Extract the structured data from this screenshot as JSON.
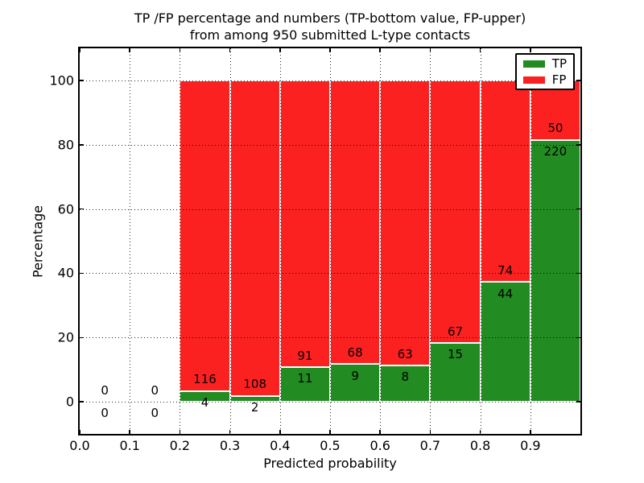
{
  "title_line1": "TP /FP percentage and numbers (TP-bottom value, FP-upper)",
  "title_line2": "from among 950 submitted L-type contacts",
  "chart_data": {
    "type": "bar",
    "stacked": true,
    "title": "TP /FP percentage and numbers (TP-bottom value, FP-upper)\nfrom among 950 submitted L-type contacts",
    "xlabel": "Predicted probability",
    "ylabel": "Percentage",
    "xlim": [
      0.0,
      1.0
    ],
    "ylim": [
      -10,
      110
    ],
    "grid": "dotted",
    "legend_position": "upper right",
    "total_submitted": 950,
    "bin_edges": [
      0.0,
      0.1,
      0.2,
      0.3,
      0.4,
      0.5,
      0.6,
      0.7,
      0.8,
      0.9,
      1.0
    ],
    "x_tick_values": [
      0.0,
      0.1,
      0.2,
      0.3,
      0.4,
      0.5,
      0.6,
      0.7,
      0.8,
      0.9
    ],
    "x_tick_labels": [
      "0.0",
      "0.1",
      "0.2",
      "0.3",
      "0.4",
      "0.5",
      "0.6",
      "0.7",
      "0.8",
      "0.9"
    ],
    "y_tick_values": [
      0,
      20,
      40,
      60,
      80,
      100
    ],
    "y_tick_labels": [
      "0",
      "20",
      "40",
      "60",
      "80",
      "100"
    ],
    "series": [
      {
        "name": "TP",
        "color": "#228b22",
        "counts": [
          0,
          0,
          4,
          2,
          11,
          9,
          8,
          15,
          44,
          220
        ]
      },
      {
        "name": "FP",
        "color": "#fb2121",
        "counts": [
          0,
          0,
          116,
          108,
          91,
          68,
          63,
          67,
          74,
          50
        ]
      }
    ],
    "tp_percent_heights": [
      0,
      0,
      3.33,
      1.82,
      10.78,
      11.69,
      11.27,
      18.29,
      37.29,
      81.48
    ]
  }
}
